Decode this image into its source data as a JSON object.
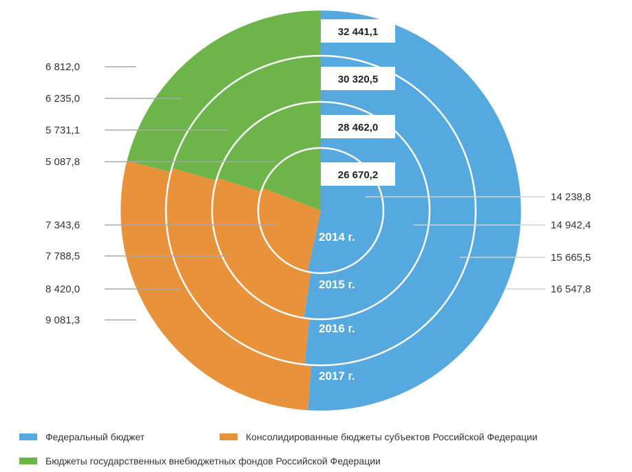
{
  "chart_data": {
    "type": "pie",
    "subtype": "concentric-rings",
    "colors": {
      "federal": "#56A9DF",
      "regional": "#E8923C",
      "funds": "#6DB44A"
    },
    "series": [
      {
        "name": "Федеральный бюджет",
        "key": "federal"
      },
      {
        "name": "Консолидированные бюджеты субъектов Российской Федерации",
        "key": "regional"
      },
      {
        "name": "Бюджеты государственных внебюджетных фондов Российской Федерации",
        "key": "funds"
      }
    ],
    "rings": [
      {
        "year": "2014 г.",
        "total": "26 670,2",
        "values": {
          "federal": 14238.8,
          "regional": 7343.6,
          "funds": 5087.8
        },
        "labels": {
          "federal": "14 238,8",
          "regional": "7 343,6",
          "funds": "5 087,8"
        }
      },
      {
        "year": "2015 г.",
        "total": "28 462,0",
        "values": {
          "federal": 14942.4,
          "regional": 7788.5,
          "funds": 5731.1
        },
        "labels": {
          "federal": "14 942,4",
          "regional": "7 788,5",
          "funds": "5 731,1"
        }
      },
      {
        "year": "2016 г.",
        "total": "30 320,5",
        "values": {
          "federal": 15665.5,
          "regional": 8420.0,
          "funds": 6235.0
        },
        "labels": {
          "federal": "15 665,5",
          "regional": "8 420,0",
          "funds": "6 235,0"
        }
      },
      {
        "year": "2017 г.",
        "total": "32 441,1",
        "values": {
          "federal": 16547.8,
          "regional": 9081.3,
          "funds": 6812.0
        },
        "labels": {
          "federal": "16 547,8",
          "regional": "9 081,3",
          "funds": "6 812,0"
        }
      }
    ],
    "legend_position": "bottom"
  },
  "legend": {
    "federal": "Федеральный бюджет",
    "regional": "Консолидированные бюджеты субъектов Российской Федерации",
    "funds": "Бюджеты государственных внебюджетных фондов Российской Федерации"
  }
}
